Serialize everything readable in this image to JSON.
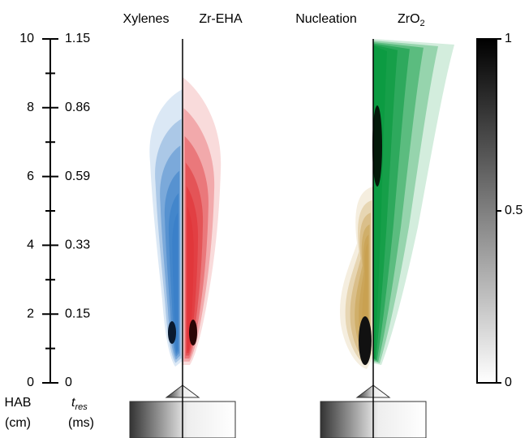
{
  "chart_data": {
    "type": "flame-maps",
    "panels": [
      "Xylenes",
      "Zr-EHA",
      "Nucleation",
      {
        "main": "ZrO",
        "sub": "2"
      }
    ],
    "ylim": [
      0,
      10
    ],
    "yticks": [
      0,
      2,
      4,
      6,
      8,
      10
    ],
    "yminorticks": [
      1,
      3,
      5,
      7,
      9
    ],
    "y_label": [
      "HAB",
      "(cm)"
    ],
    "y2ticks": [
      0,
      0.15,
      0.33,
      0.59,
      0.86,
      1.15
    ],
    "y2_label": {
      "main": "t",
      "sub": "res",
      "unit": "(ms)"
    },
    "colorbar": {
      "clim": [
        0,
        1
      ],
      "ticks": [
        0,
        0.5,
        1
      ]
    }
  }
}
